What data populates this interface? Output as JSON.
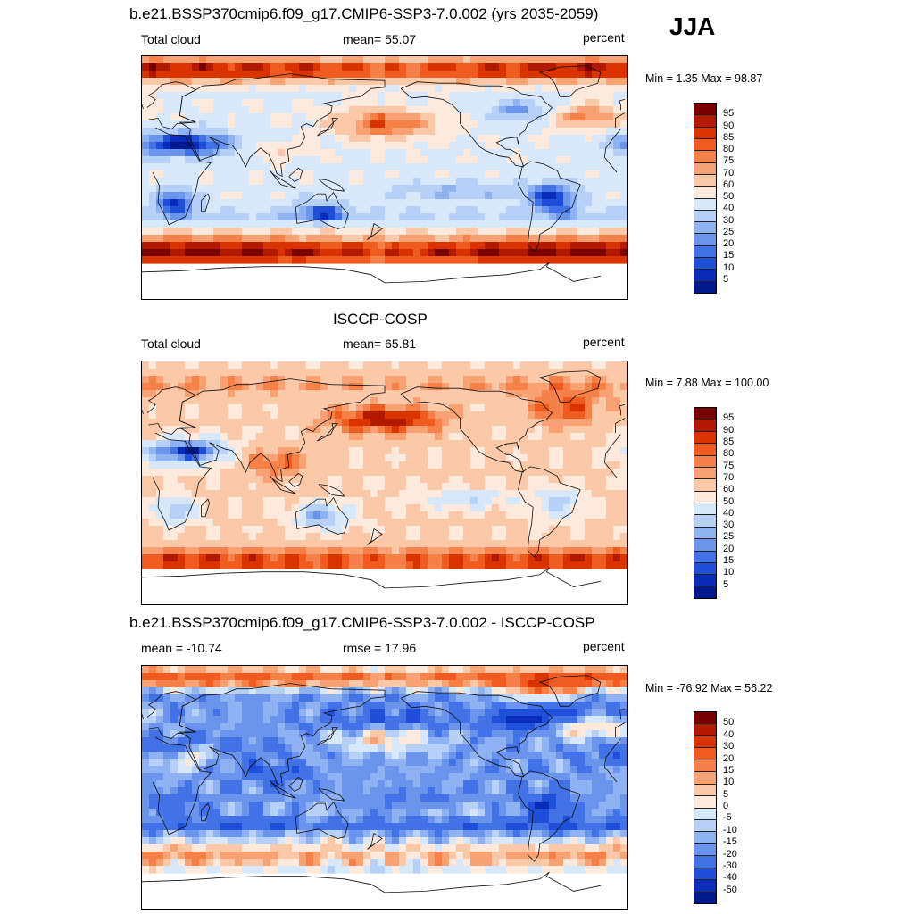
{
  "season": "JJA",
  "panels": [
    {
      "title": "b.e21.BSSP370cmip6.f09_g17.CMIP6-SSP3-7.0.002 (yrs 2035-2059)",
      "left_label": "Total cloud",
      "center_label": "mean=  55.07",
      "units": "percent",
      "minmax": "Min =   1.35 Max =  98.87",
      "field": "model",
      "colorbar_labels": [
        "95",
        "90",
        "85",
        "80",
        "75",
        "70",
        "60",
        "50",
        "40",
        "30",
        "25",
        "20",
        "15",
        "10",
        "5"
      ],
      "colorbar_colors": [
        "#7a0000",
        "#b21a00",
        "#d93400",
        "#f05b20",
        "#f58048",
        "#f8a274",
        "#fbc8a8",
        "#fdeadc",
        "#d8e8fb",
        "#b6d0f7",
        "#8fb3f2",
        "#6b95ec",
        "#4272e6",
        "#1f4fd8",
        "#0a2cb8",
        "#001a8e"
      ]
    },
    {
      "title": "ISCCP-COSP",
      "left_label": "Total cloud",
      "center_label": "mean=  65.81",
      "units": "percent",
      "minmax": "Min =   7.88 Max = 100.00",
      "field": "obs",
      "colorbar_labels": [
        "95",
        "90",
        "85",
        "80",
        "75",
        "70",
        "60",
        "50",
        "40",
        "30",
        "25",
        "20",
        "15",
        "10",
        "5"
      ],
      "colorbar_colors": [
        "#7a0000",
        "#b21a00",
        "#d93400",
        "#f05b20",
        "#f58048",
        "#f8a274",
        "#fbc8a8",
        "#fdeadc",
        "#d8e8fb",
        "#b6d0f7",
        "#8fb3f2",
        "#6b95ec",
        "#4272e6",
        "#1f4fd8",
        "#0a2cb8",
        "#001a8e"
      ]
    },
    {
      "title": "b.e21.BSSP370cmip6.f09_g17.CMIP6-SSP3-7.0.002 - ISCCP-COSP",
      "left_label": "mean = -10.74",
      "center_label": "rmse =  17.96",
      "units": "percent",
      "minmax": "Min = -76.92 Max =  56.22",
      "field": "diff",
      "colorbar_labels": [
        "50",
        "40",
        "30",
        "20",
        "15",
        "10",
        "5",
        "0",
        "-5",
        "-10",
        "-15",
        "-20",
        "-30",
        "-40",
        "-50"
      ],
      "colorbar_colors": [
        "#7a0000",
        "#b21a00",
        "#d93400",
        "#f05b20",
        "#f58048",
        "#f8a274",
        "#fbc8a8",
        "#fdeadc",
        "#d8e8fb",
        "#b6d0f7",
        "#8fb3f2",
        "#6b95ec",
        "#4272e6",
        "#1f4fd8",
        "#0a2cb8",
        "#001a8e"
      ]
    }
  ]
}
